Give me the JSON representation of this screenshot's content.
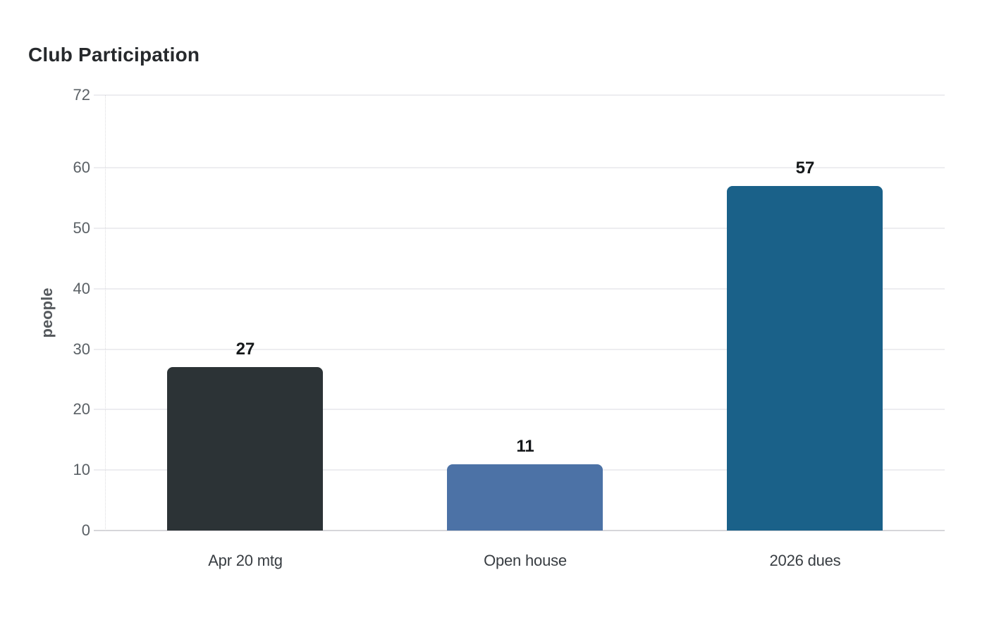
{
  "chart_data": {
    "type": "bar",
    "title": "Club Participation",
    "ylabel": "people",
    "xlabel": "",
    "categories": [
      "Apr 20 mtg",
      "Open house",
      "2026 dues"
    ],
    "values": [
      27,
      11,
      57
    ],
    "value_labels": [
      "27",
      "11",
      "57"
    ],
    "colors": [
      "#2c3336",
      "#4c72a6",
      "#1a6189"
    ],
    "ylim": [
      0,
      72
    ],
    "yticks": [
      0,
      10,
      20,
      30,
      40,
      50,
      60,
      72
    ],
    "grid": "horizontal",
    "legend": "none",
    "background": "#ffffff",
    "style": {
      "grid_color": "#ededf0",
      "zero_line_color": "#d6d6d9",
      "axis_line_color": "#dcdcdf",
      "tick_label_color": "#5a6065",
      "category_label_color": "#383d42",
      "value_label_color": "#15181a",
      "title_color": "#26292c",
      "ylabel_color": "#55595d"
    }
  }
}
